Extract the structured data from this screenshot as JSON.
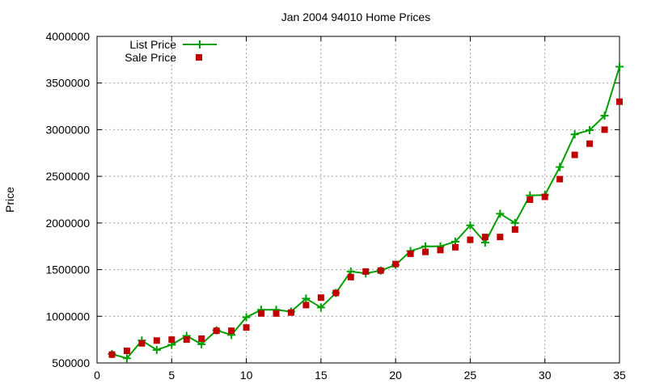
{
  "chart_data": {
    "type": "line",
    "title": "Jan 2004 94010 Home Prices",
    "xlabel": "",
    "ylabel": "Price",
    "xlim": [
      0,
      35
    ],
    "ylim": [
      500000,
      4000000
    ],
    "x_ticks": [
      0,
      5,
      10,
      15,
      20,
      25,
      30,
      35
    ],
    "y_ticks": [
      500000,
      1000000,
      1500000,
      2000000,
      2500000,
      3000000,
      3500000,
      4000000
    ],
    "grid": true,
    "legend_position": "top-left",
    "series": [
      {
        "name": "List Price",
        "style": "line-with-plus-markers",
        "color": "#00a000",
        "x": [
          1,
          2,
          3,
          4,
          5,
          6,
          7,
          8,
          9,
          10,
          11,
          12,
          13,
          14,
          15,
          16,
          17,
          18,
          19,
          20,
          21,
          22,
          23,
          24,
          25,
          26,
          27,
          28,
          29,
          30,
          31,
          32,
          33,
          34,
          35
        ],
        "y": [
          595000,
          550000,
          740000,
          640000,
          695000,
          790000,
          700000,
          850000,
          800000,
          990000,
          1070000,
          1070000,
          1050000,
          1190000,
          1095000,
          1250000,
          1480000,
          1460000,
          1490000,
          1550000,
          1700000,
          1750000,
          1750000,
          1800000,
          1975000,
          1790000,
          2100000,
          2000000,
          2295000,
          2300000,
          2600000,
          2950000,
          2995000,
          3150000,
          3675000
        ]
      },
      {
        "name": "Sale Price",
        "style": "square-markers",
        "color": "#c00000",
        "x": [
          1,
          2,
          3,
          4,
          5,
          6,
          7,
          8,
          9,
          10,
          11,
          12,
          13,
          14,
          15,
          16,
          17,
          18,
          19,
          20,
          21,
          22,
          23,
          24,
          25,
          26,
          27,
          28,
          29,
          30,
          31,
          32,
          33,
          34,
          35
        ],
        "y": [
          590000,
          630000,
          710000,
          740000,
          750000,
          750000,
          760000,
          845000,
          845000,
          880000,
          1030000,
          1030000,
          1040000,
          1120000,
          1200000,
          1250000,
          1420000,
          1480000,
          1490000,
          1560000,
          1670000,
          1690000,
          1710000,
          1740000,
          1820000,
          1850000,
          1850000,
          1930000,
          2250000,
          2280000,
          2470000,
          2730000,
          2850000,
          3000000,
          3300000
        ]
      }
    ]
  }
}
